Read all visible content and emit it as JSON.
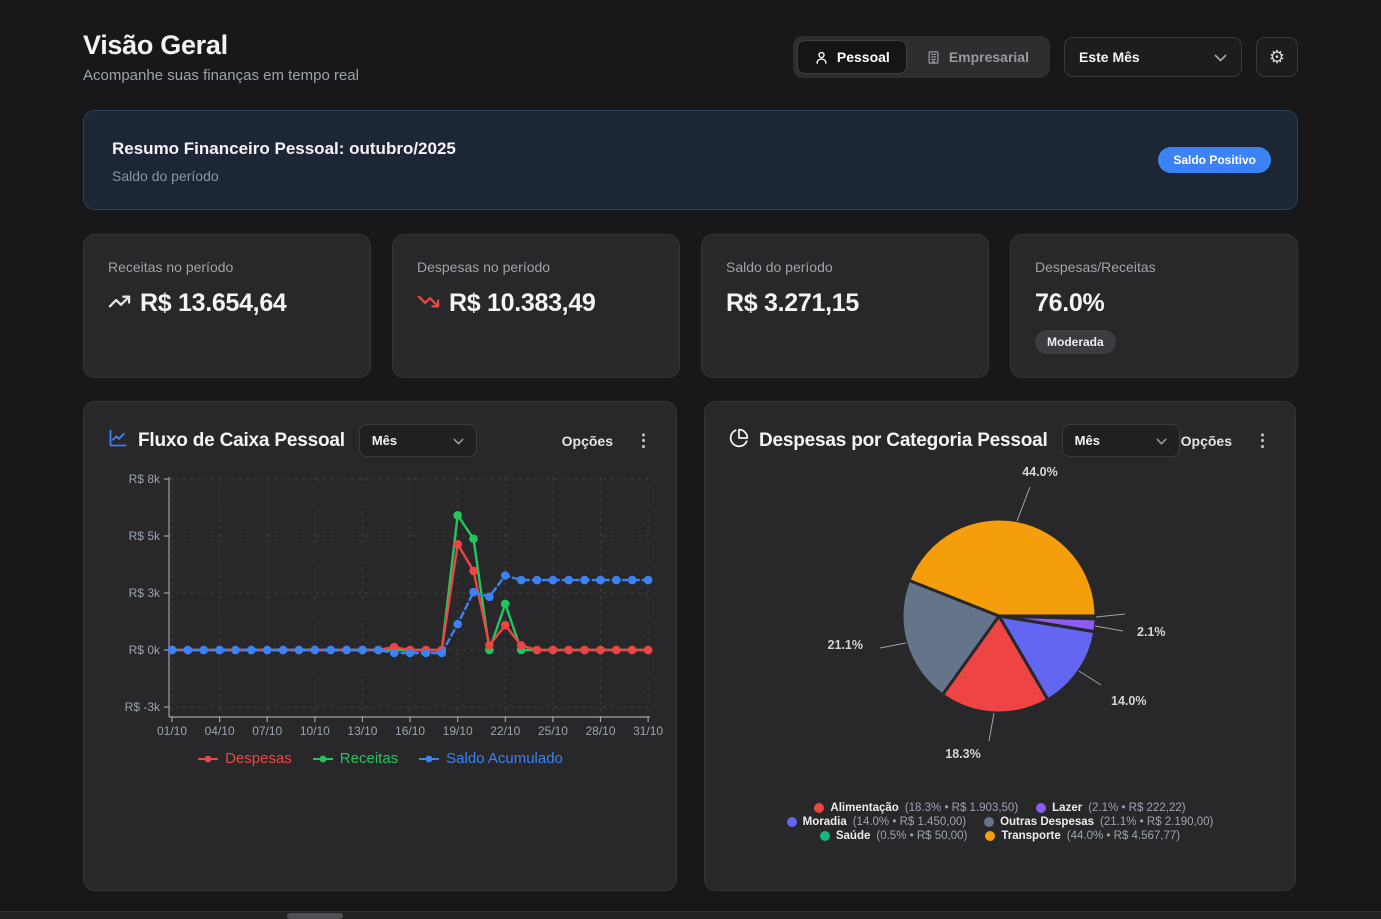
{
  "header": {
    "title": "Visão Geral",
    "subtitle": "Acompanhe suas finanças em tempo real",
    "profile_toggle": {
      "personal": "Pessoal",
      "business": "Empresarial",
      "active": "Pessoal"
    },
    "period_select": "Este Mês"
  },
  "banner": {
    "title": "Resumo Financeiro Pessoal: outubro/2025",
    "subtitle": "Saldo do período",
    "badge": "Saldo Positivo",
    "badge_color": "#3b82f6"
  },
  "stats": [
    {
      "label": "Receitas no período",
      "value": "R$ 13.654,64",
      "icon": "trending-up-icon",
      "icon_color": "#e5e5e5"
    },
    {
      "label": "Despesas no período",
      "value": "R$ 10.383,49",
      "icon": "trending-down-icon",
      "icon_color": "#ef4444"
    },
    {
      "label": "Saldo do período",
      "value": "R$ 3.271,15"
    },
    {
      "label": "Despesas/Receitas",
      "value": "76.0%",
      "badge": "Moderada"
    }
  ],
  "cashflow_chart": {
    "title": "Fluxo de Caixa Pessoal",
    "period_select": "Mês",
    "options_label": "Opções",
    "chart_data": {
      "type": "line",
      "x_start": "01/10",
      "x_end": "31/10",
      "x_ticks": [
        "01/10",
        "04/10",
        "07/10",
        "10/10",
        "13/10",
        "16/10",
        "19/10",
        "22/10",
        "25/10",
        "28/10",
        "31/10"
      ],
      "y_tick_labels": [
        "R$ 8k",
        "R$ 5k",
        "R$ 3k",
        "R$ 0k",
        "R$ -3k"
      ],
      "y_tick_values": [
        8000,
        5333,
        2667,
        0,
        -2667
      ],
      "ylim": [
        -3150,
        8400
      ],
      "grid": true,
      "legend_position": "bottom",
      "series": [
        {
          "name": "Despesas",
          "color": "#ef4444",
          "style": "solid",
          "values": [
            0,
            0,
            0,
            0,
            0,
            0,
            0,
            0,
            0,
            0,
            0,
            0,
            0,
            0,
            140,
            0,
            0,
            0,
            4950,
            3700,
            220,
            1160,
            213.49,
            0,
            0,
            0,
            0,
            0,
            0,
            0,
            0
          ]
        },
        {
          "name": "Receitas",
          "color": "#22c55e",
          "style": "solid",
          "values": [
            0,
            0,
            0,
            0,
            0,
            0,
            0,
            0,
            0,
            0,
            0,
            0,
            0,
            0,
            0,
            0,
            0,
            0,
            6300,
            5200,
            0,
            2154.64,
            0,
            0,
            0,
            0,
            0,
            0,
            0,
            0,
            0
          ]
        },
        {
          "name": "Saldo Acumulado",
          "color": "#3b82f6",
          "style": "dashed",
          "values": [
            0,
            0,
            0,
            0,
            0,
            0,
            0,
            0,
            0,
            0,
            0,
            0,
            0,
            0,
            -140,
            -140,
            -140,
            -140,
            1210,
            2710,
            2490,
            3484.64,
            3271.15,
            3271.15,
            3271.15,
            3271.15,
            3271.15,
            3271.15,
            3271.15,
            3271.15,
            3271.15
          ]
        }
      ]
    }
  },
  "category_chart": {
    "title": "Despesas por Categoria Pessoal",
    "period_select": "Mês",
    "options_label": "Opções",
    "chart_data": {
      "type": "pie",
      "start_angle_deg": 0,
      "direction": "clockwise",
      "slices": [
        {
          "name": "Saúde",
          "pct": 0.5,
          "pct_label": "0.5%",
          "amount": "R$ 50,00",
          "color": "#10b981",
          "callout_label": false
        },
        {
          "name": "Lazer",
          "pct": 2.1,
          "pct_label": "2.1%",
          "amount": "R$ 222,22",
          "color": "#8b5cf6",
          "callout_label": true
        },
        {
          "name": "Moradia",
          "pct": 14.0,
          "pct_label": "14.0%",
          "amount": "R$ 1.450,00",
          "color": "#6366f1",
          "callout_label": true
        },
        {
          "name": "Alimentação",
          "pct": 18.3,
          "pct_label": "18.3%",
          "amount": "R$ 1.903,50",
          "color": "#ef4444",
          "callout_label": true
        },
        {
          "name": "Outras Despesas",
          "pct": 21.1,
          "pct_label": "21.1%",
          "amount": "R$ 2.190,00",
          "color": "#64748b",
          "callout_label": true
        },
        {
          "name": "Transporte",
          "pct": 44.0,
          "pct_label": "44.0%",
          "amount": "R$ 4.567,77",
          "color": "#f59e0b",
          "callout_label": true
        }
      ],
      "legend_order": [
        3,
        1,
        2,
        4,
        0,
        5
      ]
    }
  }
}
